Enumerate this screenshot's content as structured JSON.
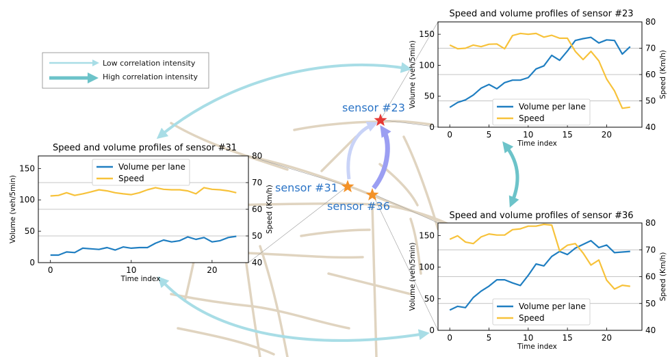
{
  "legend": {
    "low_label": "Low correlation intensity",
    "high_label": "High correlation intensity",
    "low_color": "#a8dde6",
    "high_color": "#6cc3c9"
  },
  "sensors": [
    {
      "label": "sensor #23",
      "color": "#e53935"
    },
    {
      "label": "sensor #31",
      "color": "#f39228"
    },
    {
      "label": "sensor #36",
      "color": "#f39228"
    }
  ],
  "colors": {
    "volume": "#1f7ec1",
    "speed": "#f7c23a",
    "roads": "#e0d4c0",
    "sensor_text": "#2b74c6"
  },
  "chart_data": [
    {
      "type": "line",
      "title": "Speed and volume profiles of sensor #23",
      "xlabel": "Time index",
      "ylabel": "Volume (veh/5min)",
      "y2label": "Speed (Km/h)",
      "x": [
        0,
        1,
        2,
        3,
        4,
        5,
        6,
        7,
        8,
        9,
        10,
        11,
        12,
        13,
        14,
        15,
        16,
        17,
        18,
        19,
        20,
        21,
        22,
        23
      ],
      "xlim": [
        -1.5,
        24.5
      ],
      "ylim": [
        0,
        170
      ],
      "y2lim": [
        40,
        80
      ],
      "xticks": [
        0,
        5,
        10,
        15,
        20
      ],
      "yticks": [
        0,
        50,
        100,
        150
      ],
      "y2ticks": [
        40,
        50,
        60,
        70,
        80
      ],
      "grid": "horizontal",
      "legend_position": "lower-center",
      "series": [
        {
          "name": "Volume per lane",
          "axis": "left",
          "values": [
            32,
            40,
            44,
            52,
            63,
            69,
            62,
            72,
            76,
            76,
            80,
            94,
            99,
            116,
            108,
            123,
            140,
            143,
            145,
            136,
            141,
            140,
            118,
            130
          ]
        },
        {
          "name": "Speed",
          "axis": "right",
          "values": [
            71.2,
            69.8,
            70.0,
            71.2,
            70.6,
            71.5,
            71.6,
            69.8,
            74.8,
            75.6,
            75.3,
            75.6,
            74.2,
            74.9,
            73.8,
            73.8,
            68.8,
            65.7,
            68.8,
            65.2,
            58.3,
            53.8,
            47.2,
            47.6
          ]
        }
      ]
    },
    {
      "type": "line",
      "title": "Speed and volume profiles of sensor #31",
      "xlabel": "Time index",
      "ylabel": "Volume (veh/5min)",
      "y2label": "Speed (Km/h)",
      "x": [
        0,
        1,
        2,
        3,
        4,
        5,
        6,
        7,
        8,
        9,
        10,
        11,
        12,
        13,
        14,
        15,
        16,
        17,
        18,
        19,
        20,
        21,
        22,
        23
      ],
      "xlim": [
        -1.5,
        24.5
      ],
      "ylim": [
        0,
        170
      ],
      "y2lim": [
        40,
        80
      ],
      "xticks": [
        0,
        10,
        20
      ],
      "yticks": [
        0,
        50,
        100,
        150
      ],
      "y2ticks": [
        40,
        50,
        60,
        70,
        80
      ],
      "grid": "horizontal",
      "legend_position": "top-center",
      "series": [
        {
          "name": "Volume per lane",
          "axis": "left",
          "values": [
            12,
            12,
            17,
            16,
            23,
            22,
            21,
            24,
            20,
            25,
            23,
            24,
            24,
            31,
            36,
            33,
            35,
            41,
            37,
            40,
            33,
            35,
            40,
            42
          ]
        },
        {
          "name": "Speed",
          "axis": "right",
          "values": [
            65.0,
            65.2,
            66.2,
            65.2,
            65.8,
            66.5,
            67.3,
            66.9,
            66.2,
            65.8,
            65.5,
            66.2,
            67.3,
            68.1,
            67.5,
            67.3,
            67.3,
            66.9,
            65.8,
            68.1,
            67.5,
            67.3,
            66.9,
            66.2
          ]
        }
      ]
    },
    {
      "type": "line",
      "title": "Speed and volume profiles of sensor #36",
      "xlabel": "Time index",
      "ylabel": "Volume (veh/5min)",
      "y2label": "Speed (Km/h)",
      "x": [
        0,
        1,
        2,
        3,
        4,
        5,
        6,
        7,
        8,
        9,
        10,
        11,
        12,
        13,
        14,
        15,
        16,
        17,
        18,
        19,
        20,
        21,
        22,
        23
      ],
      "xlim": [
        -1.5,
        24.5
      ],
      "ylim": [
        0,
        170
      ],
      "y2lim": [
        40,
        80
      ],
      "xticks": [
        0,
        5,
        10,
        15,
        20
      ],
      "yticks": [
        0,
        50,
        100,
        150
      ],
      "y2ticks": [
        40,
        50,
        60,
        70,
        80
      ],
      "grid": "horizontal",
      "legend_position": "lower-center",
      "series": [
        {
          "name": "Volume per lane",
          "axis": "left",
          "values": [
            32,
            38,
            36,
            52,
            62,
            70,
            80,
            80,
            75,
            71,
            87,
            105,
            102,
            117,
            125,
            120,
            130,
            136,
            142,
            131,
            135,
            123,
            124,
            125
          ]
        },
        {
          "name": "Speed",
          "axis": "right",
          "values": [
            73.9,
            75.2,
            72.9,
            72.3,
            74.8,
            75.9,
            75.5,
            75.5,
            77.5,
            77.8,
            78.8,
            78.8,
            79.5,
            79.2,
            69.6,
            71.7,
            72.3,
            68.8,
            64.3,
            66.2,
            58.7,
            55.4,
            56.8,
            56.4
          ]
        }
      ]
    }
  ]
}
